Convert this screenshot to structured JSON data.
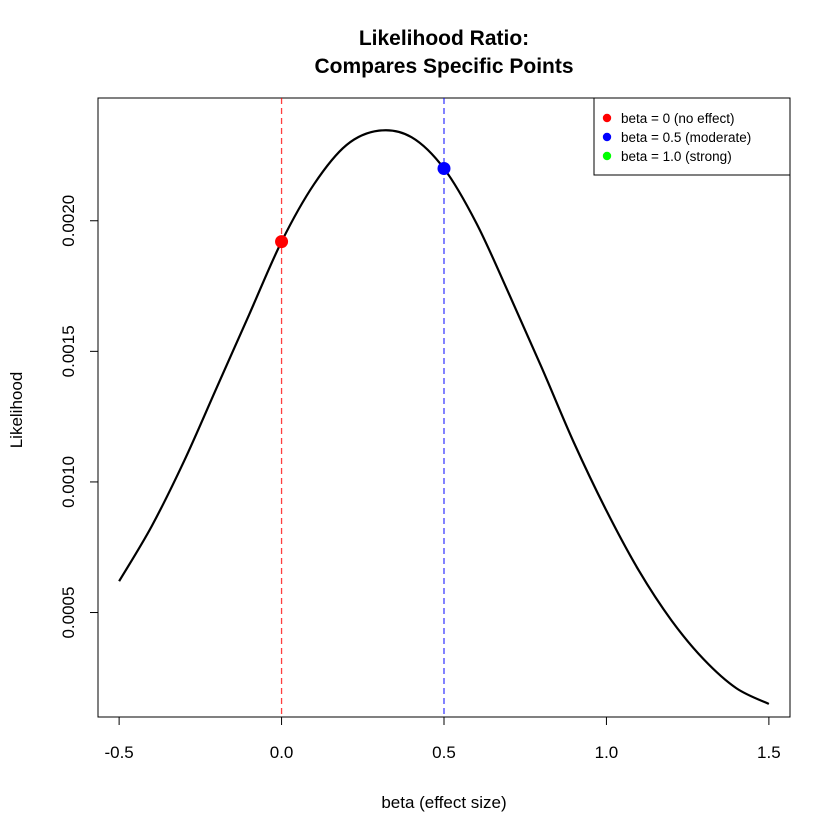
{
  "chart_data": {
    "type": "line",
    "title_line1": "Likelihood Ratio:",
    "title_line2": "Compares Specific Points",
    "xlabel": "beta (effect size)",
    "ylabel": "Likelihood",
    "xlim": [
      -0.565,
      1.565
    ],
    "ylim": [
      0.0001,
      0.00247
    ],
    "x_ticks": [
      {
        "value": -0.5,
        "label": "-0.5"
      },
      {
        "value": 0.0,
        "label": "0.0"
      },
      {
        "value": 0.5,
        "label": "0.5"
      },
      {
        "value": 1.0,
        "label": "1.0"
      },
      {
        "value": 1.5,
        "label": "1.5"
      }
    ],
    "y_ticks": [
      {
        "value": 0.0005,
        "label": "0.0005"
      },
      {
        "value": 0.001,
        "label": "0.0010"
      },
      {
        "value": 0.0015,
        "label": "0.0015"
      },
      {
        "value": 0.002,
        "label": "0.0020"
      }
    ],
    "curve": {
      "x": [
        -0.5,
        -0.4,
        -0.3,
        -0.2,
        -0.1,
        0.0,
        0.1,
        0.2,
        0.3,
        0.4,
        0.5,
        0.6,
        0.7,
        0.8,
        0.9,
        1.0,
        1.1,
        1.2,
        1.3,
        1.4,
        1.5
      ],
      "y": [
        0.00062,
        0.00083,
        0.00108,
        0.00136,
        0.00164,
        0.00192,
        0.00214,
        0.00229,
        0.002345,
        0.00232,
        0.0022,
        0.00199,
        0.00172,
        0.00144,
        0.00115,
        0.00089,
        0.00066,
        0.00047,
        0.00032,
        0.00021,
        0.00015
      ],
      "color": "#000000"
    },
    "points": [
      {
        "x": 0.0,
        "y": 0.00192,
        "color": "#ff0000"
      },
      {
        "x": 0.5,
        "y": 0.0022,
        "color": "#0000ff"
      }
    ],
    "vlines": [
      {
        "x": 0.0,
        "color": "#ff0000"
      },
      {
        "x": 0.5,
        "color": "#0000ff"
      }
    ],
    "legend": {
      "position": "top-right",
      "items": [
        {
          "label": "beta = 0 (no effect)",
          "color": "#ff0000"
        },
        {
          "label": "beta = 0.5 (moderate)",
          "color": "#0000ff"
        },
        {
          "label": "beta = 1.0 (strong)",
          "color": "#00ff00"
        }
      ]
    },
    "grid": false
  }
}
